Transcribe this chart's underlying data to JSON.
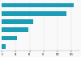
{
  "values": [
    128630,
    116000,
    57000,
    47000,
    27000,
    7000
  ],
  "bar_color": "#1a9db5",
  "background_color": "#f9f9f9",
  "grid_color": "#cccccc",
  "xlim_max": 140000,
  "figsize": [
    1.0,
    0.71
  ],
  "dpi": 100,
  "bar_height": 0.55,
  "tick_fontsize": 1.8
}
